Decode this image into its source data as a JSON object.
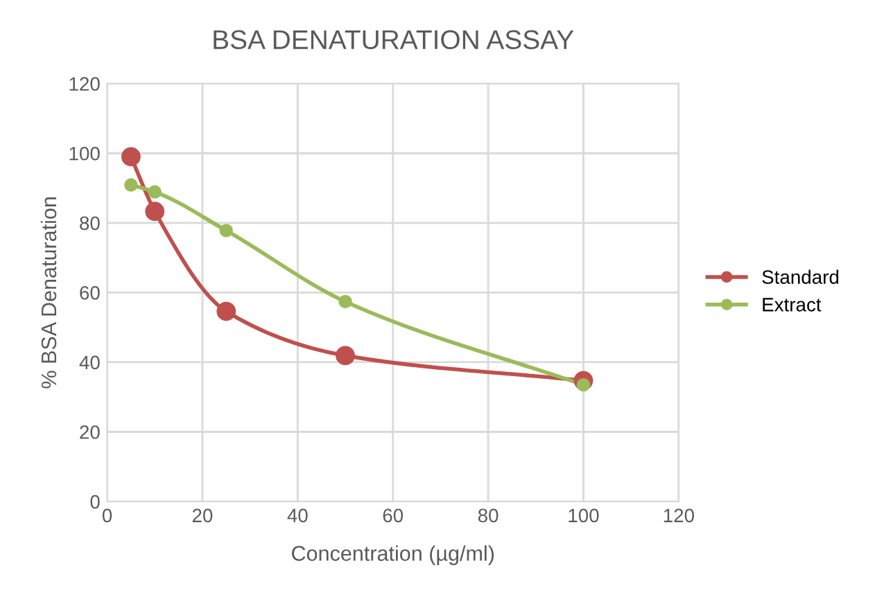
{
  "chart_data": {
    "type": "line",
    "title": "BSA DENATURATION ASSAY",
    "xlabel": "Concentration (µg/ml)",
    "ylabel": "% BSA Denaturation",
    "x": [
      5,
      10,
      25,
      50,
      100
    ],
    "series": [
      {
        "name": "Standard",
        "color": "#c0504d",
        "values": [
          99,
          83.3,
          54.6,
          41.9,
          34.7
        ]
      },
      {
        "name": "Extract",
        "color": "#9bbb59",
        "values": [
          90.9,
          88.9,
          77.8,
          57.4,
          33.5
        ]
      }
    ],
    "xlim": [
      0,
      120
    ],
    "xticks": [
      0,
      20,
      40,
      60,
      80,
      100,
      120
    ],
    "ylim": [
      0,
      120
    ],
    "yticks": [
      0,
      20,
      40,
      60,
      80,
      100,
      120
    ],
    "grid": true,
    "legend": "right",
    "marker": "circle",
    "line_style": "solid"
  }
}
